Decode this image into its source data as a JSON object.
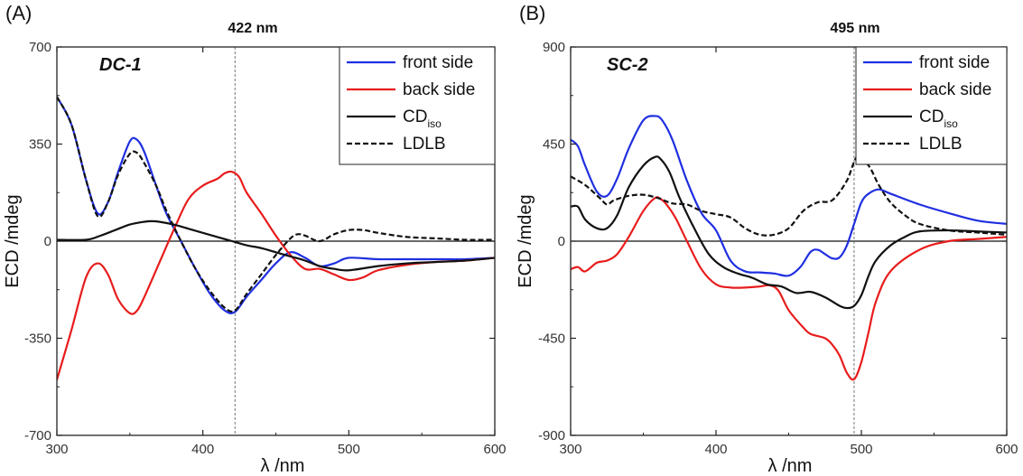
{
  "chart_data": [
    {
      "panel": "(A)",
      "type": "line",
      "sample_label": "DC-1",
      "marker_label": "422 nm",
      "marker_x": 422,
      "xlabel": "λ /nm",
      "ylabel": "ECD /mdeg",
      "xlim": [
        300,
        600
      ],
      "ylim": [
        -700,
        700
      ],
      "xticks": [
        300,
        400,
        500,
        600
      ],
      "yticks": [
        700,
        350,
        0,
        -350,
        -700
      ],
      "legend_position": "top-right",
      "series": [
        {
          "name": "front side",
          "color": "#1f2fe0",
          "dash": "solid",
          "x": [
            300,
            310,
            320,
            328,
            335,
            342,
            350,
            355,
            360,
            368,
            375,
            385,
            395,
            405,
            415,
            422,
            430,
            440,
            450,
            460,
            470,
            480,
            490,
            500,
            520,
            540,
            560,
            580,
            600
          ],
          "y": [
            520,
            420,
            220,
            100,
            140,
            250,
            360,
            365,
            320,
            200,
            100,
            0,
            -100,
            -190,
            -250,
            -255,
            -200,
            -140,
            -80,
            -40,
            -60,
            -90,
            -80,
            -60,
            -65,
            -65,
            -65,
            -65,
            -60
          ]
        },
        {
          "name": "back side",
          "color": "#e81c1c",
          "dash": "solid",
          "x": [
            300,
            310,
            320,
            328,
            335,
            342,
            350,
            355,
            360,
            370,
            380,
            390,
            400,
            410,
            415,
            420,
            425,
            430,
            440,
            450,
            460,
            470,
            480,
            490,
            500,
            510,
            520,
            540,
            560,
            580,
            600
          ],
          "y": [
            -500,
            -320,
            -130,
            -80,
            -120,
            -210,
            -260,
            -250,
            -200,
            -80,
            40,
            150,
            200,
            225,
            245,
            250,
            230,
            175,
            100,
            20,
            -50,
            -100,
            -100,
            -120,
            -140,
            -130,
            -105,
            -85,
            -75,
            -70,
            -60
          ]
        },
        {
          "name": "CDiso",
          "name_main": "CD",
          "name_sub": "iso",
          "color": "#111111",
          "dash": "solid",
          "x": [
            300,
            320,
            330,
            340,
            350,
            360,
            365,
            370,
            380,
            390,
            400,
            410,
            420,
            430,
            440,
            450,
            460,
            470,
            480,
            490,
            500,
            520,
            540,
            560,
            580,
            600
          ],
          "y": [
            5,
            5,
            20,
            40,
            60,
            70,
            72,
            70,
            60,
            45,
            30,
            15,
            0,
            -15,
            -25,
            -40,
            -55,
            -70,
            -90,
            -100,
            -105,
            -90,
            -80,
            -75,
            -70,
            -60
          ]
        },
        {
          "name": "LDLB",
          "color": "#111111",
          "dash": "dashed",
          "x": [
            300,
            310,
            320,
            328,
            335,
            342,
            350,
            355,
            360,
            368,
            375,
            385,
            395,
            405,
            415,
            422,
            430,
            440,
            450,
            460,
            465,
            470,
            480,
            490,
            500,
            510,
            520,
            540,
            560,
            580,
            600
          ],
          "y": [
            520,
            420,
            220,
            90,
            140,
            240,
            315,
            318,
            280,
            200,
            110,
            0,
            -100,
            -180,
            -240,
            -250,
            -190,
            -120,
            -50,
            10,
            25,
            20,
            0,
            25,
            40,
            40,
            30,
            15,
            10,
            5,
            5
          ]
        }
      ],
      "legend": [
        "front side",
        "back side",
        "CDiso",
        "LDLB"
      ]
    },
    {
      "panel": "(B)",
      "type": "line",
      "sample_label": "SC-2",
      "marker_label": "495 nm",
      "marker_x": 495,
      "xlabel": "λ /nm",
      "ylabel": "ECD /mdeg",
      "xlim": [
        300,
        600
      ],
      "ylim": [
        -900,
        900
      ],
      "xticks": [
        300,
        400,
        500,
        600
      ],
      "yticks": [
        900,
        450,
        0,
        -450,
        -900
      ],
      "legend_position": "top-right",
      "series": [
        {
          "name": "front side",
          "color": "#1f2fe0",
          "dash": "solid",
          "x": [
            300,
            305,
            310,
            318,
            325,
            332,
            340,
            350,
            358,
            363,
            370,
            380,
            390,
            400,
            410,
            420,
            430,
            440,
            450,
            458,
            465,
            470,
            475,
            480,
            485,
            490,
            495,
            500,
            505,
            512,
            520,
            540,
            560,
            580,
            600
          ],
          "y": [
            470,
            440,
            350,
            230,
            210,
            290,
            430,
            560,
            580,
            560,
            470,
            280,
            130,
            50,
            -90,
            -140,
            -145,
            -150,
            -160,
            -120,
            -50,
            -40,
            -60,
            -80,
            -75,
            -20,
            80,
            180,
            220,
            240,
            220,
            170,
            130,
            95,
            80
          ]
        },
        {
          "name": "back side",
          "color": "#e81c1c",
          "dash": "solid",
          "x": [
            300,
            305,
            310,
            318,
            325,
            332,
            340,
            350,
            358,
            362,
            366,
            372,
            380,
            390,
            400,
            410,
            420,
            430,
            437,
            443,
            450,
            460,
            465,
            475,
            480,
            485,
            490,
            495,
            500,
            505,
            510,
            520,
            540,
            560,
            580,
            600
          ],
          "y": [
            -130,
            -120,
            -140,
            -100,
            -90,
            -60,
            20,
            140,
            200,
            195,
            170,
            110,
            0,
            -130,
            -200,
            -215,
            -215,
            -210,
            -205,
            -230,
            -320,
            -400,
            -430,
            -450,
            -480,
            -530,
            -610,
            -640,
            -560,
            -420,
            -280,
            -140,
            -40,
            0,
            10,
            20
          ]
        },
        {
          "name": "CDiso",
          "name_main": "CD",
          "name_sub": "iso",
          "color": "#111111",
          "dash": "solid",
          "x": [
            300,
            305,
            310,
            318,
            325,
            332,
            340,
            350,
            358,
            362,
            368,
            375,
            385,
            395,
            405,
            415,
            425,
            435,
            445,
            455,
            465,
            475,
            485,
            490,
            495,
            500,
            505,
            510,
            520,
            530,
            540,
            560,
            580,
            600
          ],
          "y": [
            160,
            160,
            100,
            60,
            60,
            120,
            250,
            350,
            390,
            380,
            320,
            200,
            60,
            -60,
            -120,
            -150,
            -170,
            -200,
            -210,
            -240,
            -235,
            -260,
            -300,
            -310,
            -300,
            -250,
            -160,
            -90,
            -20,
            20,
            45,
            50,
            45,
            40
          ]
        },
        {
          "name": "LDLB",
          "color": "#111111",
          "dash": "dashed",
          "x": [
            300,
            310,
            320,
            325,
            330,
            340,
            350,
            360,
            370,
            380,
            390,
            400,
            410,
            420,
            430,
            440,
            450,
            460,
            470,
            480,
            490,
            497,
            505,
            512,
            520,
            530,
            540,
            560,
            580,
            600
          ],
          "y": [
            300,
            260,
            200,
            170,
            190,
            210,
            215,
            200,
            175,
            170,
            140,
            125,
            110,
            60,
            30,
            30,
            60,
            140,
            180,
            190,
            280,
            390,
            350,
            260,
            180,
            120,
            80,
            50,
            40,
            30
          ]
        }
      ],
      "legend": [
        "front side",
        "back side",
        "CDiso",
        "LDLB"
      ]
    }
  ]
}
